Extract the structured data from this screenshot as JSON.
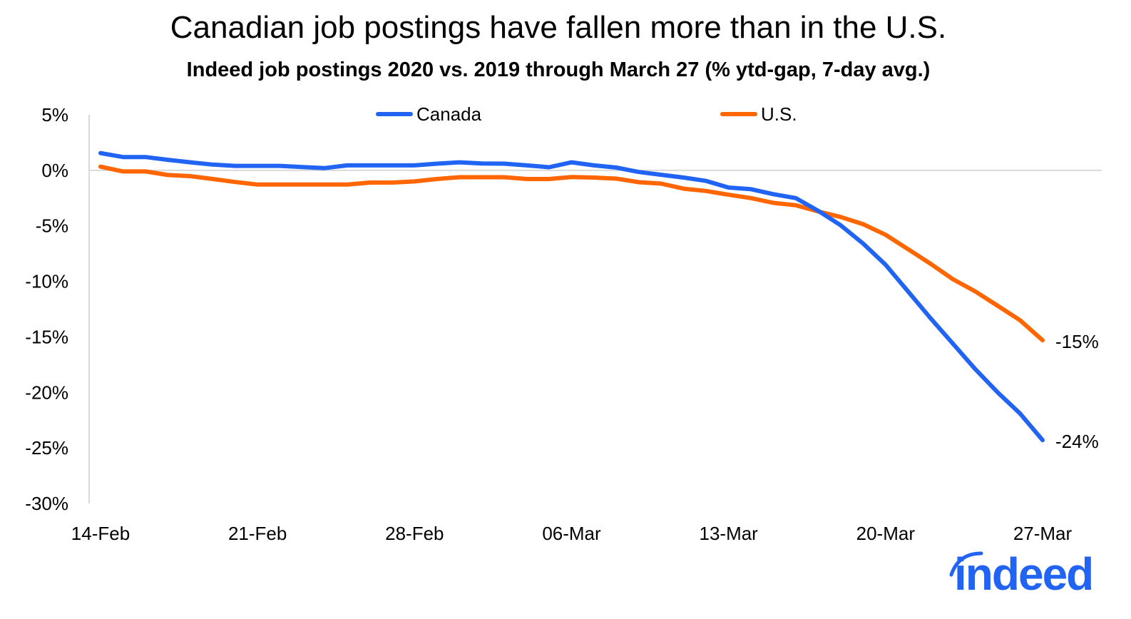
{
  "chart_data": {
    "type": "line",
    "title": "Canadian job postings have fallen more than in the U.S.",
    "subtitle": "Indeed job postings 2020 vs. 2019 through March 27 (% ytd-gap, 7-day avg.)",
    "xlabel": "",
    "ylabel": "",
    "x_tick_labels": [
      "14-Feb",
      "21-Feb",
      "28-Feb",
      "06-Mar",
      "13-Mar",
      "20-Mar",
      "27-Mar"
    ],
    "x_range": [
      "14-Feb",
      "27-Mar"
    ],
    "y_tick_labels": [
      "5%",
      "0%",
      "-5%",
      "-10%",
      "-15%",
      "-20%",
      "-25%",
      "-30%"
    ],
    "ylim": [
      -30,
      5
    ],
    "y_unit": "%",
    "grid": "zero line only",
    "legend_position": "top",
    "series": [
      {
        "name": "Canada",
        "color": "#2164f3",
        "end_label": "-24%",
        "values": [
          1.55,
          1.2,
          1.2,
          0.95,
          0.72,
          0.52,
          0.4,
          0.4,
          0.4,
          0.3,
          0.2,
          0.45,
          0.45,
          0.45,
          0.45,
          0.6,
          0.72,
          0.62,
          0.6,
          0.45,
          0.28,
          0.72,
          0.45,
          0.25,
          -0.15,
          -0.4,
          -0.65,
          -0.95,
          -1.55,
          -1.7,
          -2.15,
          -2.5,
          -3.65,
          -4.95,
          -6.6,
          -8.5,
          -10.9,
          -13.3,
          -15.6,
          -17.9,
          -20.0,
          -21.9,
          -24.3
        ]
      },
      {
        "name": "U.S.",
        "color": "#ff6600",
        "end_label": "-15%",
        "values": [
          0.33,
          -0.1,
          -0.1,
          -0.42,
          -0.52,
          -0.78,
          -1.05,
          -1.28,
          -1.28,
          -1.28,
          -1.28,
          -1.28,
          -1.1,
          -1.1,
          -1.0,
          -0.78,
          -0.62,
          -0.62,
          -0.62,
          -0.78,
          -0.78,
          -0.6,
          -0.65,
          -0.75,
          -1.07,
          -1.2,
          -1.65,
          -1.86,
          -2.2,
          -2.5,
          -2.93,
          -3.14,
          -3.7,
          -4.2,
          -4.85,
          -5.8,
          -7.1,
          -8.4,
          -9.8,
          -10.9,
          -12.2,
          -13.5,
          -15.3
        ]
      }
    ]
  },
  "logo": {
    "text": "indeed",
    "color": "#2164f3"
  }
}
